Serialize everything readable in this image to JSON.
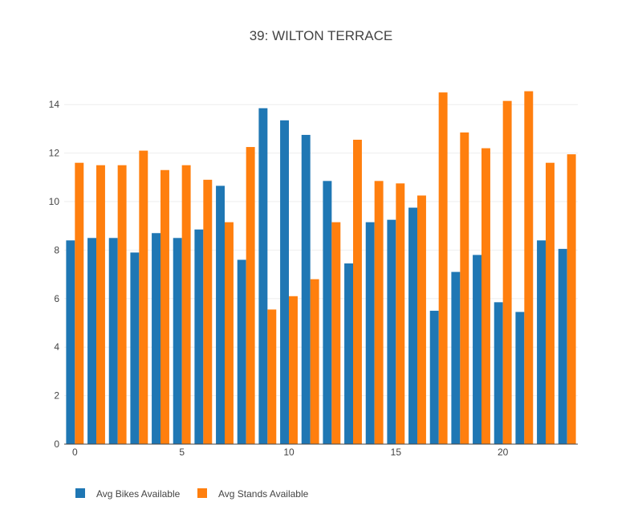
{
  "chart_data": {
    "type": "bar",
    "title": "39: WILTON TERRACE",
    "xlabel": "",
    "ylabel": "",
    "x": [
      0,
      1,
      2,
      3,
      4,
      5,
      6,
      7,
      8,
      9,
      10,
      11,
      12,
      13,
      14,
      15,
      16,
      17,
      18,
      19,
      20,
      21,
      22,
      23
    ],
    "x_ticks": [
      0,
      5,
      10,
      15,
      20
    ],
    "y_ticks": [
      0,
      2,
      4,
      6,
      8,
      10,
      12,
      14
    ],
    "ylim": [
      0,
      15
    ],
    "xlim": [
      -0.5,
      23.5
    ],
    "grid": true,
    "legend_position": "bottom-left",
    "series": [
      {
        "name": "Avg Bikes Available",
        "color": "#1f77b4",
        "values": [
          8.4,
          8.5,
          8.5,
          7.9,
          8.7,
          8.5,
          8.85,
          10.65,
          7.6,
          13.85,
          13.35,
          12.75,
          10.85,
          7.45,
          9.15,
          9.25,
          9.75,
          5.5,
          7.1,
          7.8,
          5.85,
          5.45,
          8.4,
          8.05
        ]
      },
      {
        "name": "Avg Stands Available",
        "color": "#ff7f0e",
        "values": [
          11.6,
          11.5,
          11.5,
          12.1,
          11.3,
          11.5,
          10.9,
          9.15,
          12.25,
          5.55,
          6.1,
          6.8,
          9.15,
          12.55,
          10.85,
          10.75,
          10.25,
          14.5,
          12.85,
          12.2,
          14.15,
          14.55,
          11.6,
          11.95
        ]
      }
    ]
  }
}
